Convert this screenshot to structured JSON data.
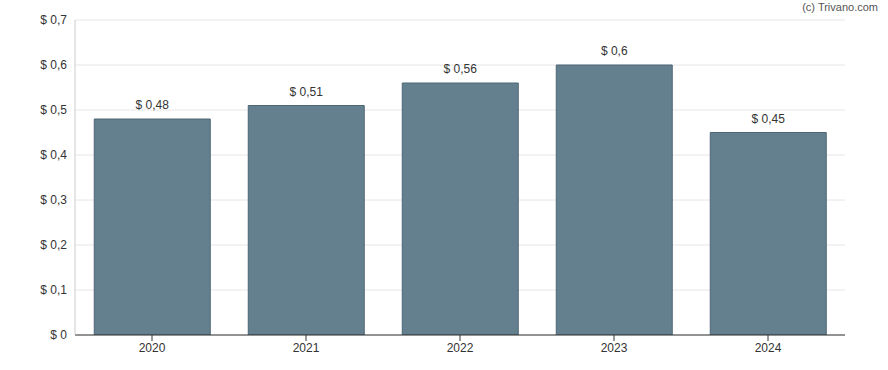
{
  "chart_data": {
    "type": "bar",
    "annotations": [
      "(c) Trivano.com"
    ],
    "categories": [
      "2020",
      "2021",
      "2022",
      "2023",
      "2024"
    ],
    "values": [
      0.48,
      0.51,
      0.56,
      0.6,
      0.45
    ],
    "value_labels": [
      "$ 0,48",
      "$ 0,51",
      "$ 0,56",
      "$ 0,6",
      "$ 0,45"
    ],
    "color": "#64808f",
    "ylim": [
      0,
      0.7
    ],
    "yticks": [
      {
        "value": 0,
        "label": "$ 0"
      },
      {
        "value": 0.1,
        "label": "$ 0,1"
      },
      {
        "value": 0.2,
        "label": "$ 0,2"
      },
      {
        "value": 0.3,
        "label": "$ 0,3"
      },
      {
        "value": 0.4,
        "label": "$ 0,4"
      },
      {
        "value": 0.5,
        "label": "$ 0,5"
      },
      {
        "value": 0.6,
        "label": "$ 0,6"
      },
      {
        "value": 0.7,
        "label": "$ 0,7"
      }
    ],
    "grid": true,
    "data_labels": true
  }
}
